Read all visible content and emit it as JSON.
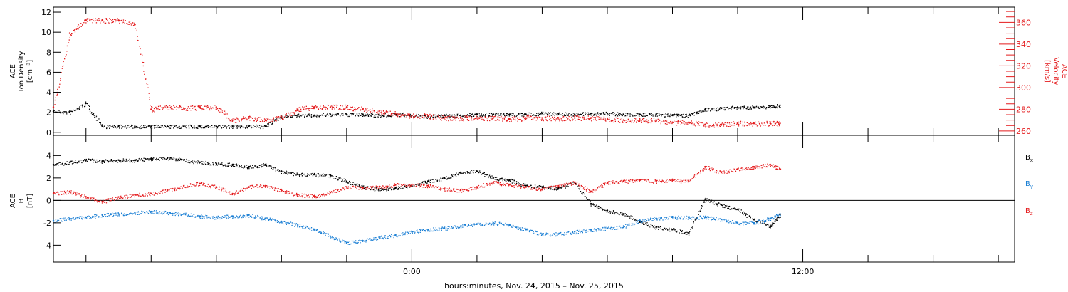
{
  "xlabel": "hours:minutes, Nov. 24, 2015 – Nov. 25, 2015",
  "chart_data": [
    {
      "type": "scatter",
      "panel": "top",
      "title": "",
      "xlabel": "hours:minutes, Nov. 24, 2015 – Nov. 25, 2015",
      "xlim_hours": [
        -11,
        18.5
      ],
      "xticks": [
        {
          "h": 0,
          "label": "0:00"
        },
        {
          "h": 12,
          "label": "12:00"
        }
      ],
      "grid": false,
      "left_axis": {
        "label_lines": [
          "ACE",
          "Ion Density",
          "[cm⁻³]"
        ],
        "color": "#000000",
        "ylim": [
          -0.3,
          12.5
        ],
        "ticks": [
          0,
          2,
          4,
          6,
          8,
          10,
          12
        ]
      },
      "right_axis": {
        "label_lines": [
          "ACE",
          "Velocity",
          "[km/s]"
        ],
        "color": "#e41a1c",
        "ylim": [
          256,
          374
        ],
        "ticks": [
          260,
          280,
          300,
          320,
          340,
          360
        ]
      },
      "series": [
        {
          "axis": "left",
          "color": "#000000",
          "x": [
            -11,
            -10.5,
            -10,
            -9.5,
            -9,
            -8.5,
            -8,
            -7.5,
            -7,
            -6.5,
            -6,
            -5.5,
            -5,
            -4.5,
            -4,
            -3.5,
            -3,
            -2.5,
            -2,
            -1.5,
            -1,
            -0.5,
            0,
            0.5,
            1,
            1.5,
            2,
            2.5,
            3,
            3.5,
            4,
            4.5,
            5,
            5.5,
            6,
            6.5,
            7,
            7.5,
            8,
            8.5,
            9,
            9.5,
            10,
            10.5,
            11,
            11.3
          ],
          "y": [
            2.1,
            2.0,
            2.9,
            0.6,
            0.6,
            0.6,
            0.6,
            0.6,
            0.6,
            0.6,
            0.6,
            0.6,
            0.6,
            0.6,
            1.6,
            1.7,
            1.7,
            1.8,
            1.8,
            1.8,
            1.7,
            1.8,
            1.7,
            1.6,
            1.7,
            1.7,
            1.8,
            1.8,
            1.8,
            1.8,
            1.9,
            1.9,
            1.8,
            1.9,
            1.9,
            1.8,
            1.8,
            1.8,
            1.7,
            1.7,
            2.3,
            2.4,
            2.5,
            2.5,
            2.6,
            2.7
          ]
        },
        {
          "axis": "right",
          "color": "#e41a1c",
          "x": [
            -11,
            -10.5,
            -10,
            -9.5,
            -9,
            -8.5,
            -8,
            -7.5,
            -7,
            -6.5,
            -6,
            -5.5,
            -5,
            -4.5,
            -4,
            -3.5,
            -3,
            -2.5,
            -2,
            -1.5,
            -1,
            -0.5,
            0,
            0.5,
            1,
            1.5,
            2,
            2.5,
            3,
            3.5,
            4,
            4.5,
            5,
            5.5,
            6,
            6.5,
            7,
            7.5,
            8,
            8.5,
            9,
            9.5,
            10,
            10.5,
            11,
            11.3
          ],
          "y": [
            282,
            350,
            362,
            362,
            362,
            358,
            280,
            282,
            281,
            282,
            282,
            270,
            272,
            270,
            272,
            280,
            282,
            282,
            282,
            280,
            278,
            276,
            274,
            274,
            272,
            272,
            272,
            272,
            271,
            272,
            272,
            272,
            272,
            272,
            271,
            270,
            270,
            270,
            268,
            268,
            266,
            266,
            267,
            267,
            267,
            267
          ]
        }
      ]
    },
    {
      "type": "scatter",
      "panel": "bottom",
      "title": "",
      "xlim_hours": [
        -11,
        18.5
      ],
      "grid": false,
      "left_axis": {
        "label_lines": [
          "ACE",
          "B",
          "[nT]"
        ],
        "color": "#000000",
        "ylim": [
          -5.5,
          5.8
        ],
        "ticks": [
          -4,
          -2,
          0,
          2,
          4
        ]
      },
      "zero_line": true,
      "series": [
        {
          "name": "Bx",
          "color": "#000000",
          "x": [
            -11,
            -10.5,
            -10,
            -9.5,
            -9,
            -8.5,
            -8,
            -7.5,
            -7,
            -6.5,
            -6,
            -5.5,
            -5,
            -4.5,
            -4,
            -3.5,
            -3,
            -2.5,
            -2,
            -1.5,
            -1,
            -0.5,
            0,
            0.5,
            1,
            1.5,
            2,
            2.5,
            3,
            3.5,
            4,
            4.5,
            5,
            5.5,
            6,
            6.5,
            7,
            7.5,
            8,
            8.5,
            9,
            9.5,
            10,
            10.5,
            11,
            11.3
          ],
          "y": [
            3.2,
            3.4,
            3.6,
            3.5,
            3.6,
            3.6,
            3.7,
            3.8,
            3.6,
            3.4,
            3.3,
            3.2,
            3.0,
            3.2,
            2.6,
            2.3,
            2.3,
            2.2,
            1.7,
            1.2,
            1.0,
            1.1,
            1.3,
            1.7,
            2.0,
            2.5,
            2.6,
            2.0,
            1.8,
            1.3,
            1.2,
            1.1,
            1.6,
            -0.3,
            -0.9,
            -1.2,
            -1.9,
            -2.4,
            -2.6,
            -2.9,
            0.1,
            -0.4,
            -0.8,
            -1.7,
            -2.3,
            -1.3
          ]
        },
        {
          "name": "By",
          "color": "#1b7fd4",
          "x": [
            -11,
            -10.5,
            -10,
            -9.5,
            -9,
            -8.5,
            -8,
            -7.5,
            -7,
            -6.5,
            -6,
            -5.5,
            -5,
            -4.5,
            -4,
            -3.5,
            -3,
            -2.5,
            -2,
            -1.5,
            -1,
            -0.5,
            0,
            0.5,
            1,
            1.5,
            2,
            2.5,
            3,
            3.5,
            4,
            4.5,
            5,
            5.5,
            6,
            6.5,
            7,
            7.5,
            8,
            8.5,
            9,
            9.5,
            10,
            10.5,
            11,
            11.3
          ],
          "y": [
            -1.8,
            -1.6,
            -1.5,
            -1.3,
            -1.2,
            -1.1,
            -1.0,
            -1.1,
            -1.2,
            -1.4,
            -1.5,
            -1.4,
            -1.3,
            -1.6,
            -1.9,
            -2.2,
            -2.6,
            -3.2,
            -3.8,
            -3.6,
            -3.3,
            -3.1,
            -2.8,
            -2.6,
            -2.5,
            -2.3,
            -2.1,
            -2.0,
            -2.2,
            -2.6,
            -3.0,
            -3.0,
            -2.8,
            -2.6,
            -2.5,
            -2.3,
            -1.8,
            -1.6,
            -1.5,
            -1.5,
            -1.5,
            -1.7,
            -2.0,
            -2.0,
            -1.6,
            -1.2
          ]
        },
        {
          "name": "Bz",
          "color": "#e41a1c",
          "x": [
            -11,
            -10.5,
            -10,
            -9.5,
            -9,
            -8.5,
            -8,
            -7.5,
            -7,
            -6.5,
            -6,
            -5.5,
            -5,
            -4.5,
            -4,
            -3.5,
            -3,
            -2.5,
            -2,
            -1.5,
            -1,
            -0.5,
            0,
            0.5,
            1,
            1.5,
            2,
            2.5,
            3,
            3.5,
            4,
            4.5,
            5,
            5.5,
            6,
            6.5,
            7,
            7.5,
            8,
            8.5,
            9,
            9.5,
            10,
            10.5,
            11,
            11.3
          ],
          "y": [
            0.6,
            0.8,
            0.3,
            -0.1,
            0.3,
            0.5,
            0.6,
            0.9,
            1.3,
            1.5,
            1.2,
            0.6,
            1.2,
            1.3,
            0.9,
            0.5,
            0.4,
            0.7,
            1.2,
            1.1,
            1.2,
            1.4,
            1.4,
            1.3,
            1.0,
            0.9,
            1.2,
            1.6,
            1.4,
            1.2,
            1.0,
            1.3,
            1.6,
            0.8,
            1.6,
            1.7,
            1.8,
            1.7,
            1.8,
            1.7,
            3.0,
            2.5,
            2.8,
            3.0,
            3.2,
            2.8
          ]
        }
      ]
    }
  ]
}
